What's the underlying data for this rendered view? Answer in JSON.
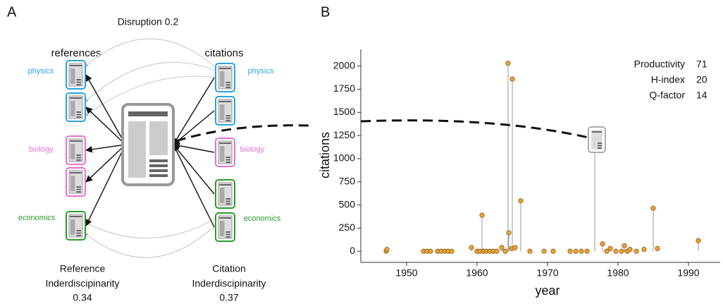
{
  "panel_a": {
    "label": "A",
    "title": "Disruption 0.2",
    "left_header": "references",
    "right_header": "citations",
    "left_fields": [
      "physics",
      "physics",
      "biology",
      "biology",
      "economics"
    ],
    "right_fields": [
      "physics",
      "biology",
      "economics"
    ],
    "left_caption": [
      "Reference",
      "Inderdiscipinarity"
    ],
    "left_value": 0.34,
    "right_caption": [
      "Citation",
      "Inderdiscipinarity"
    ],
    "right_value": 0.37
  },
  "chart_data": {
    "type": "scatter",
    "panel_label": "B",
    "x_label": "year",
    "y_label": "citations",
    "x": [
      1947.1,
      1947.2,
      1952.4,
      1952.9,
      1953.4,
      1954.4,
      1954.9,
      1955.4,
      1955.9,
      1956.4,
      1959.2,
      1960.0,
      1960.4,
      1960.7,
      1960.9,
      1961.3,
      1961.8,
      1962.3,
      1962.8,
      1963.5,
      1964.0,
      1964.4,
      1964.5,
      1964.9,
      1965.0,
      1965.4,
      1966.2,
      1967.5,
      1969.5,
      1970.8,
      1973.2,
      1974.0,
      1974.8,
      1975.6,
      1976.7,
      1977.8,
      1978.4,
      1978.9,
      1979.7,
      1980.5,
      1980.9,
      1981.3,
      1981.7,
      1982.6,
      1983.7,
      1985.6,
      1985.0,
      1991.4
    ],
    "values": [
      0,
      20,
      0,
      0,
      0,
      0,
      0,
      0,
      0,
      0,
      40,
      0,
      0,
      390,
      0,
      0,
      0,
      0,
      0,
      40,
      0,
      2030,
      200,
      30,
      1860,
      40,
      545,
      0,
      0,
      0,
      0,
      0,
      0,
      0,
      1100,
      80,
      0,
      30,
      0,
      0,
      60,
      0,
      20,
      0,
      20,
      30,
      465,
      115
    ],
    "color": "#e8a33a",
    "xlim": [
      1943.5,
      1994.5
    ],
    "xticks": [
      1950,
      1960,
      1970,
      1980,
      1990
    ],
    "ylim": [
      -120,
      2180
    ],
    "yticks": [
      0,
      250,
      500,
      750,
      1000,
      1250,
      1500,
      1750,
      2000
    ],
    "stats": [
      {
        "label": "Productivity",
        "value": 71
      },
      {
        "label": "H-index",
        "value": 20
      },
      {
        "label": "Q-factor",
        "value": 14
      }
    ]
  }
}
